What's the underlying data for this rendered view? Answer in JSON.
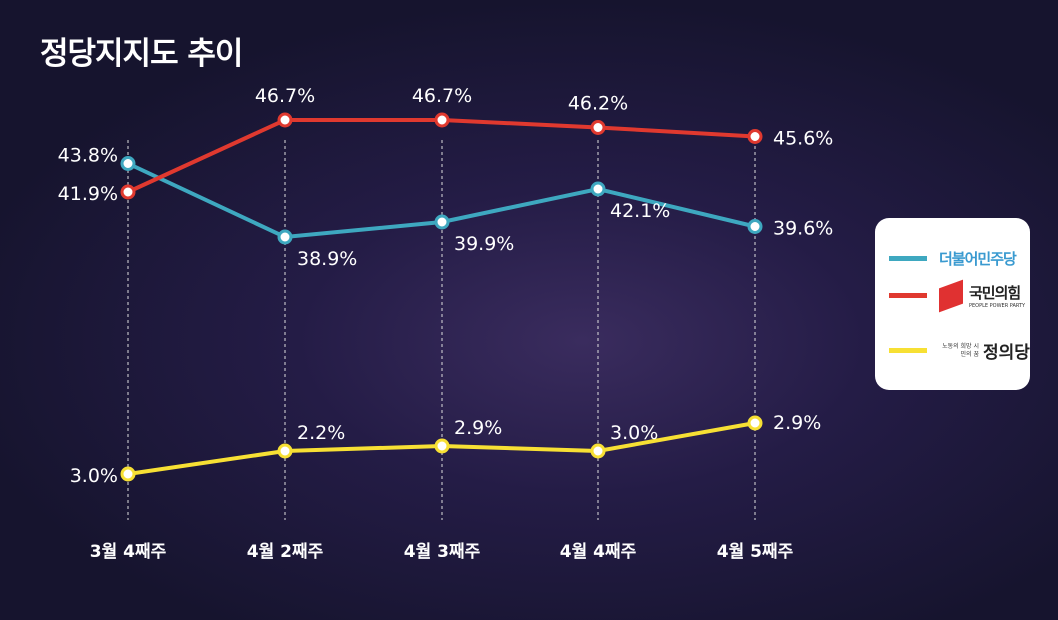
{
  "chart_data": {
    "type": "line",
    "title": "정당지지도 추이",
    "categories": [
      "3월 4째주",
      "4월 2째주",
      "4월 3째주",
      "4월 4째주",
      "4월 5째주"
    ],
    "series": [
      {
        "name": "더불어민주당",
        "color": "#3ea8c0",
        "values": [
          43.8,
          38.9,
          39.9,
          42.1,
          39.6
        ],
        "labels": [
          "43.8%",
          "38.9%",
          "39.9%",
          "42.1%",
          "39.6%"
        ]
      },
      {
        "name": "국민의힘",
        "color": "#e0392f",
        "values": [
          41.9,
          46.7,
          46.7,
          46.2,
          45.6
        ],
        "labels": [
          "41.9%",
          "46.7%",
          "46.7%",
          "46.2%",
          "45.6%"
        ]
      },
      {
        "name": "정의당",
        "color": "#f7e034",
        "values": [
          3.0,
          2.2,
          2.9,
          3.0,
          2.9
        ],
        "labels": [
          "3.0%",
          "2.2%",
          "2.9%",
          "3.0%",
          "2.9%"
        ]
      }
    ],
    "grid": "dashed vertical lines",
    "legend": "right"
  },
  "legend": {
    "minjoo": "더불어민주당",
    "ppp": "국민의힘",
    "ppp_en": "PEOPLE POWER PARTY",
    "justice_slogan": "노동의 희망 시민의 꿈",
    "justice": "정의당"
  }
}
